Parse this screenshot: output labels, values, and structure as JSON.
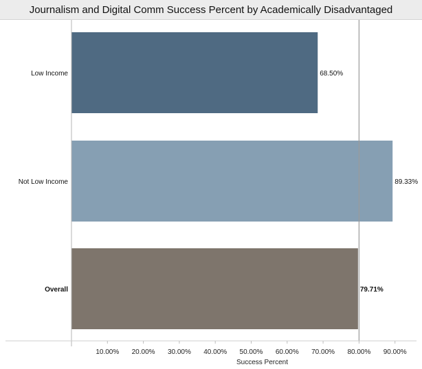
{
  "chart_data": {
    "type": "bar",
    "orientation": "horizontal",
    "title": "Journalism and Digital Comm Success Percent by Academically Disadvantaged",
    "xlabel": "Success Percent",
    "ylabel": "",
    "xlim": [
      0,
      0.95
    ],
    "ticks": [
      0.1,
      0.2,
      0.3,
      0.4,
      0.5,
      0.6,
      0.7,
      0.8,
      0.9
    ],
    "tick_labels": [
      "10.00%",
      "20.00%",
      "30.00%",
      "40.00%",
      "50.00%",
      "60.00%",
      "70.00%",
      "80.00%",
      "90.00%"
    ],
    "reference_line": 0.8,
    "grid": false,
    "categories": [
      "Low Income",
      "Not Low Income",
      "Overall"
    ],
    "values": [
      0.685,
      0.8933,
      0.7971
    ],
    "value_labels": [
      "68.50%",
      "89.33%",
      "79.71%"
    ],
    "bold": [
      false,
      false,
      true
    ],
    "colors": [
      "#4f6a82",
      "#869fb3",
      "#7e756c"
    ]
  }
}
